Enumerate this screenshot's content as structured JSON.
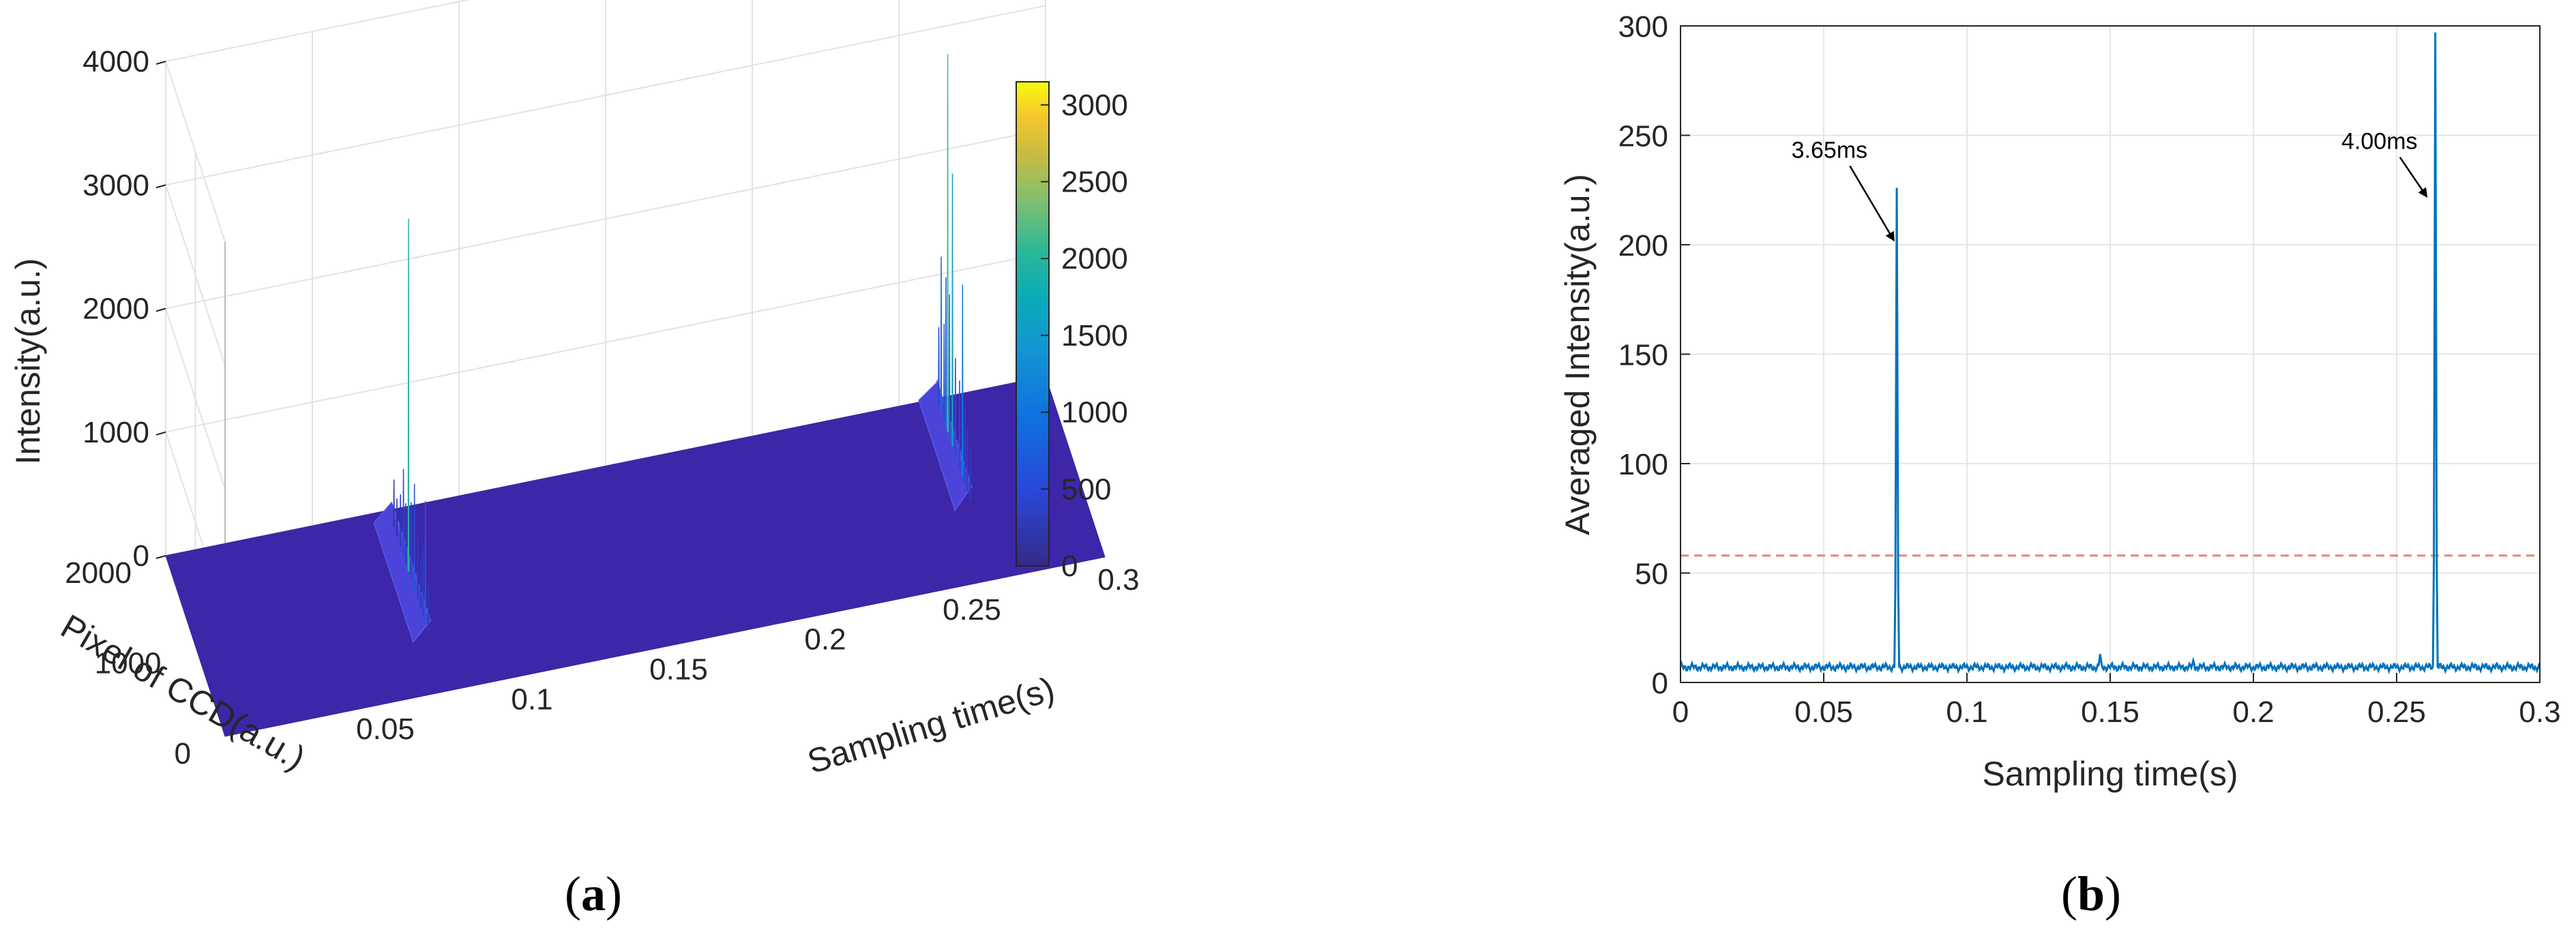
{
  "chart_data": [
    {
      "type": "surface",
      "panel_label": "a",
      "xlabel": "Sampling time(s)",
      "ylabel": "Pixel of CCD(a.u.)",
      "zlabel": "Intensity(a.u.)",
      "xlim": [
        0,
        0.3
      ],
      "ylim": [
        0,
        2000
      ],
      "zlim": [
        0,
        4000
      ],
      "x_ticks": [
        "0.05",
        "0.1",
        "0.15",
        "0.2",
        "0.25",
        "0.3"
      ],
      "y_ticks": [
        "0",
        "1000",
        "2000"
      ],
      "z_ticks": [
        "0",
        "1000",
        "2000",
        "3000",
        "4000"
      ],
      "colorbar": {
        "range": [
          0,
          3150
        ],
        "ticks": [
          "0",
          "500",
          "1000",
          "1500",
          "2000",
          "2500",
          "3000"
        ],
        "colormap": "parula"
      },
      "ridges": [
        {
          "x": 0.076,
          "peaks": [
            {
              "pixel": 1820,
              "z": 380
            },
            {
              "pixel": 1720,
              "z": 300
            },
            {
              "pixel": 1600,
              "z": 420
            },
            {
              "pixel": 1500,
              "z": 700
            },
            {
              "pixel": 1420,
              "z": 480
            },
            {
              "pixel": 1330,
              "z": 2850
            },
            {
              "pixel": 1240,
              "z": 620
            },
            {
              "pixel": 1130,
              "z": 850
            },
            {
              "pixel": 1020,
              "z": 500
            },
            {
              "pixel": 920,
              "z": 420
            },
            {
              "pixel": 840,
              "z": 560
            },
            {
              "pixel": 760,
              "z": 980
            },
            {
              "pixel": 660,
              "z": 380
            }
          ]
        },
        {
          "x": 0.263,
          "peaks": [
            {
              "pixel": 1940,
              "z": 620
            },
            {
              "pixel": 1860,
              "z": 1250
            },
            {
              "pixel": 1760,
              "z": 780
            },
            {
              "pixel": 1700,
              "z": 1200
            },
            {
              "pixel": 1640,
              "z": 3050
            },
            {
              "pixel": 1580,
              "z": 1150
            },
            {
              "pixel": 1480,
              "z": 2200
            },
            {
              "pixel": 1380,
              "z": 780
            },
            {
              "pixel": 1240,
              "z": 700
            },
            {
              "pixel": 1140,
              "z": 1550
            },
            {
              "pixel": 1060,
              "z": 620
            },
            {
              "pixel": 980,
              "z": 520
            },
            {
              "pixel": 880,
              "z": 420
            }
          ]
        }
      ]
    },
    {
      "type": "line",
      "panel_label": "b",
      "xlabel": "Sampling time(s)",
      "ylabel": "Averaged Intensity(a.u.)",
      "xlim": [
        0,
        0.3
      ],
      "ylim": [
        0,
        300
      ],
      "x_ticks": [
        "0",
        "0.05",
        "0.1",
        "0.15",
        "0.2",
        "0.25",
        "0.3"
      ],
      "y_ticks": [
        "0",
        "50",
        "100",
        "150",
        "200",
        "250",
        "300"
      ],
      "grid": true,
      "baseline": 7,
      "spikes": [
        {
          "x": 0.0755,
          "y": 226
        },
        {
          "x": 0.1465,
          "y": 13
        },
        {
          "x": 0.179,
          "y": 10
        },
        {
          "x": 0.2635,
          "y": 297
        }
      ],
      "threshold": {
        "y": 58,
        "color": "#e8827a",
        "style": "dashed"
      },
      "line_color": "#0072bd",
      "annotations": [
        {
          "text": "3.65ms",
          "point_x": 0.0745,
          "point_y": 202
        },
        {
          "text": "4.00ms",
          "point_x": 0.2605,
          "point_y": 222
        }
      ]
    }
  ]
}
